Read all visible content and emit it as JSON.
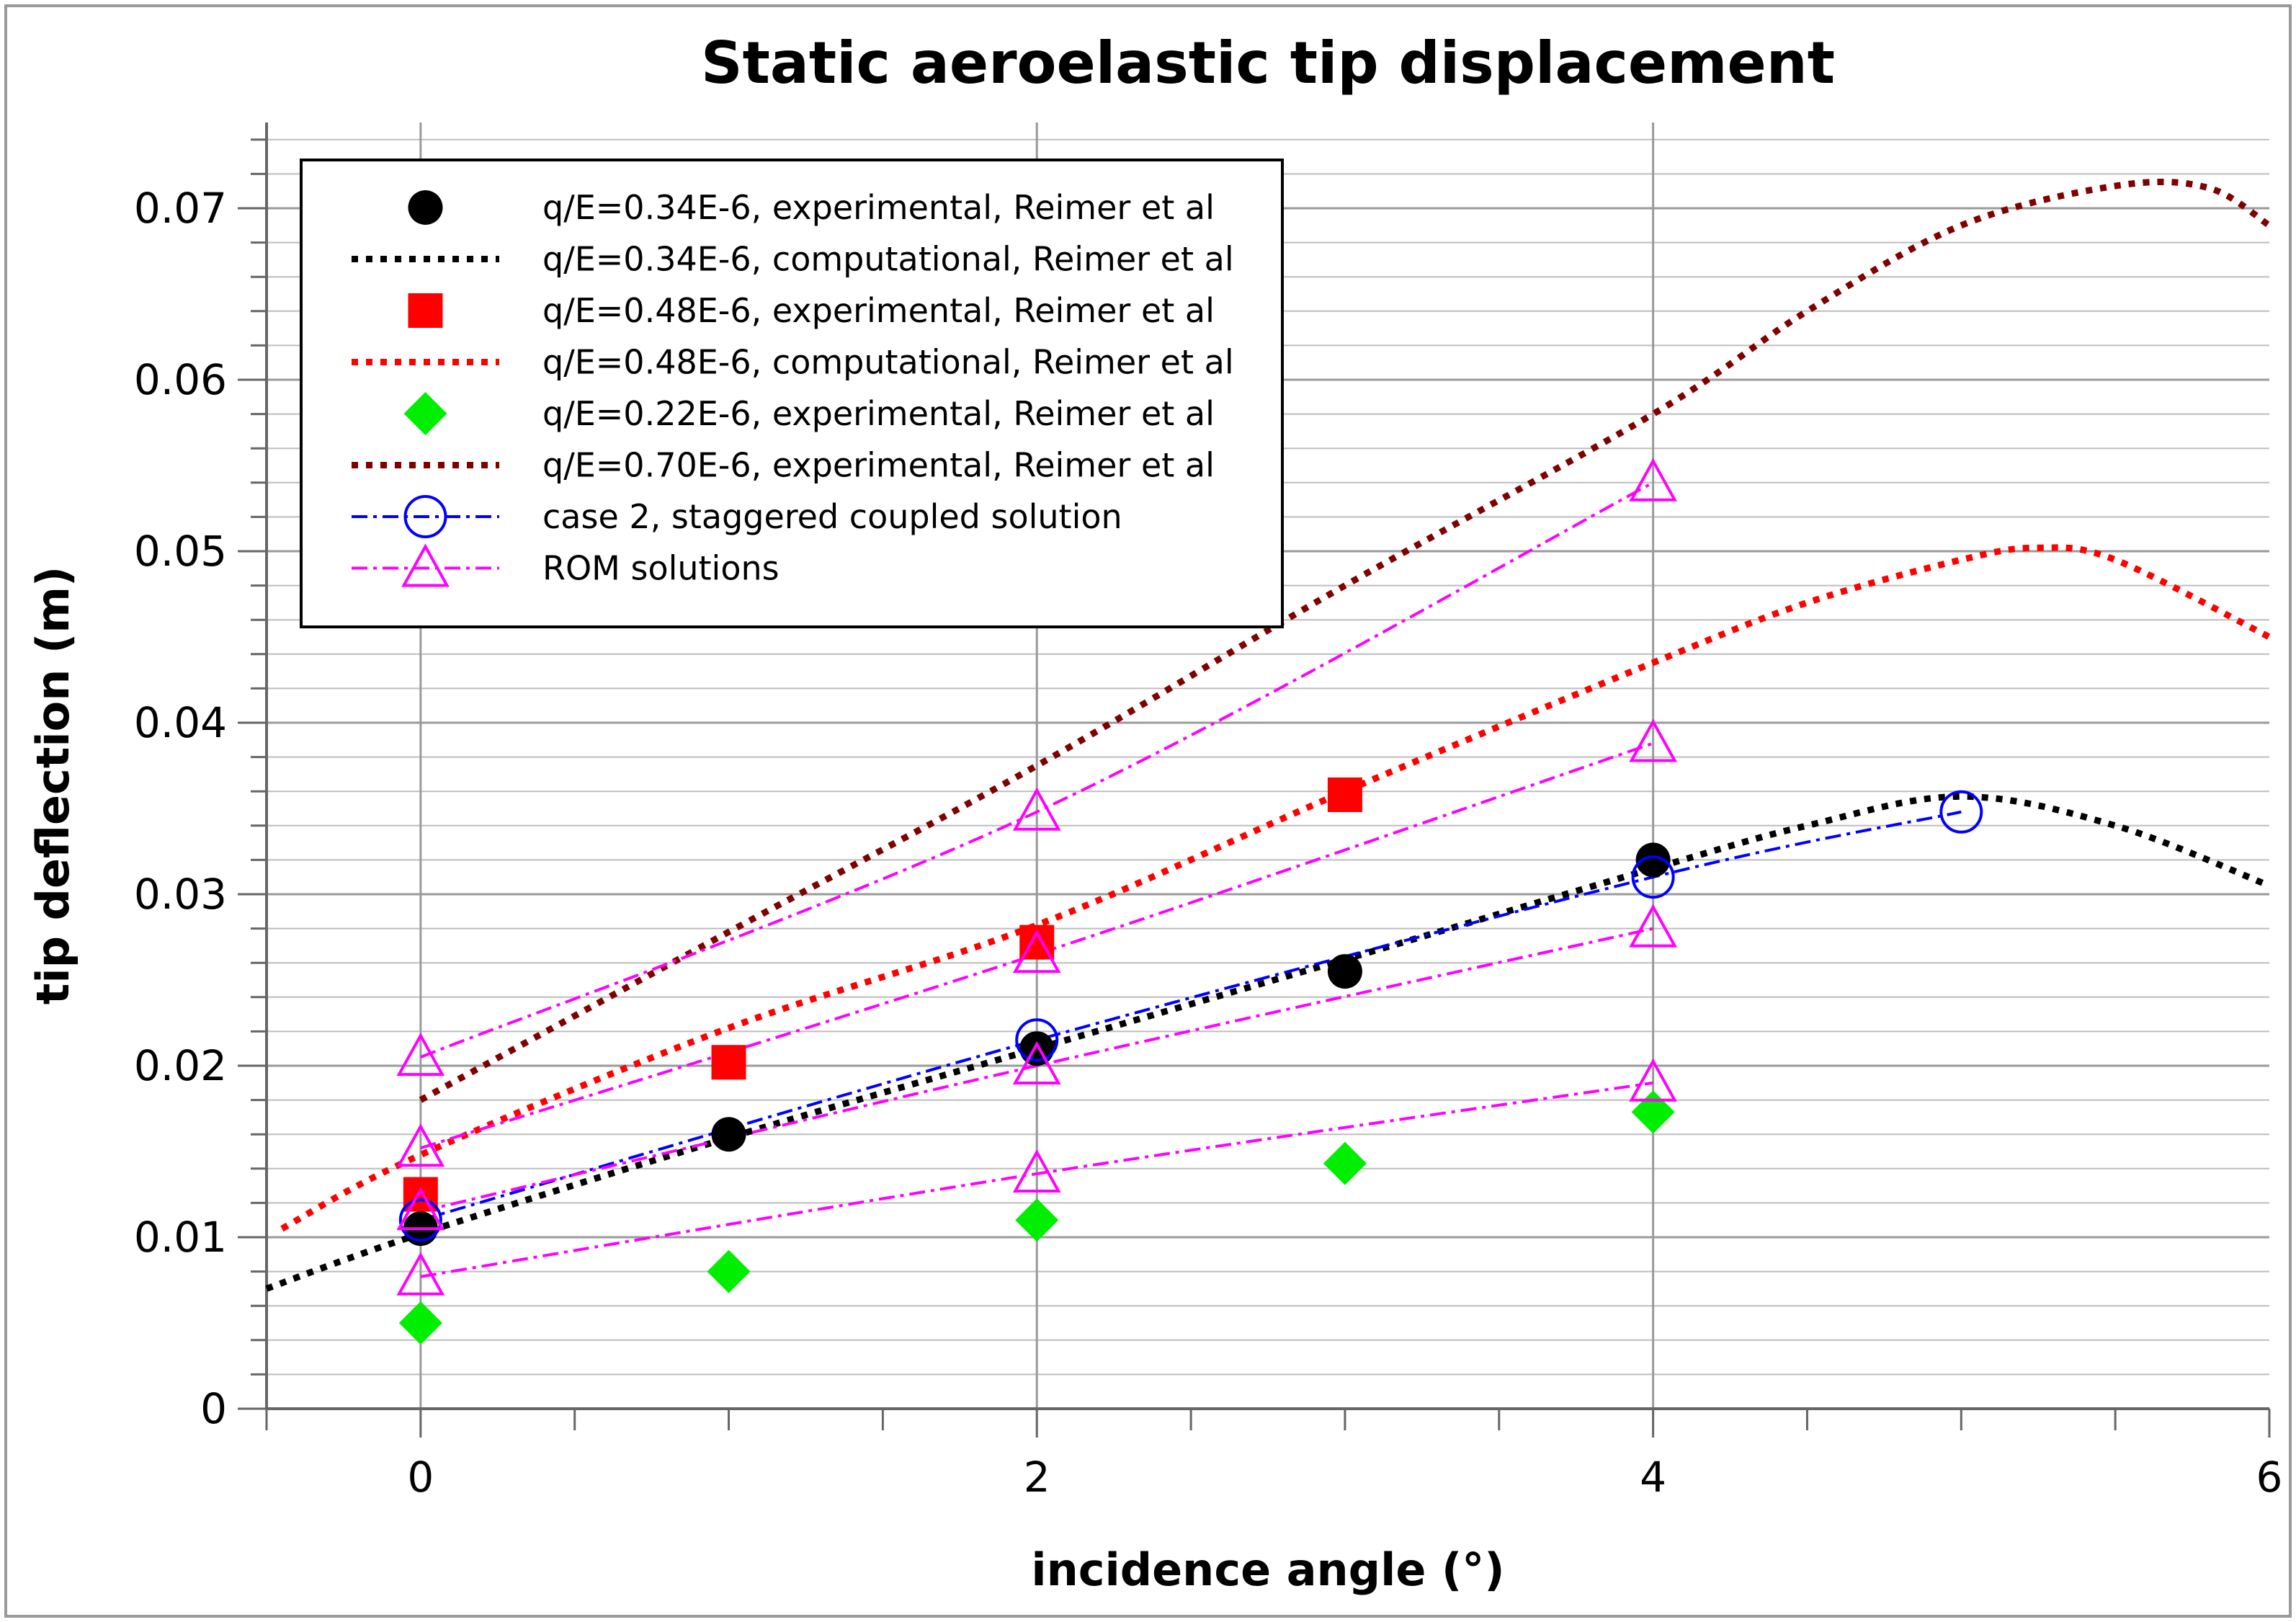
{
  "chart_data": {
    "type": "line",
    "title": "Static aeroelastic tip displacement",
    "xlabel": "incidence angle (°)",
    "ylabel": "tip deflection (m)",
    "xlim": [
      -0.5,
      6
    ],
    "ylim": [
      0,
      0.075
    ],
    "xticks": [
      0,
      2,
      4,
      6
    ],
    "xtick_labels": [
      "0",
      "2",
      "4",
      "6"
    ],
    "yticks": [
      0,
      0.01,
      0.02,
      0.03,
      0.04,
      0.05,
      0.06,
      0.07
    ],
    "ytick_labels": [
      "0",
      "0.01",
      "0.02",
      "0.03",
      "0.04",
      "0.05",
      "0.06",
      "0.07"
    ],
    "grid": true,
    "legend_position": "top-left",
    "series": [
      {
        "name": "q/E=0.34E-6, experimental, Reimer et al",
        "style": "marker",
        "marker": "circle-filled",
        "color": "#000000",
        "x": [
          0,
          1,
          2,
          3,
          4
        ],
        "y": [
          0.0105,
          0.016,
          0.021,
          0.0255,
          0.032
        ]
      },
      {
        "name": "q/E=0.34E-6, computational, Reimer et al",
        "style": "dotted",
        "color": "#000000",
        "x": [
          -0.5,
          0,
          1,
          2,
          3,
          4,
          4.5,
          5,
          5.5,
          6
        ],
        "y": [
          0.007,
          0.0102,
          0.0158,
          0.021,
          0.0262,
          0.0315,
          0.034,
          0.0357,
          0.034,
          0.0305
        ]
      },
      {
        "name": "q/E=0.48E-6, experimental, Reimer et al",
        "style": "marker",
        "marker": "square-filled",
        "color": "#ff0000",
        "x": [
          0,
          1,
          2,
          3
        ],
        "y": [
          0.0125,
          0.0202,
          0.0272,
          0.0358
        ]
      },
      {
        "name": "q/E=0.48E-6, computational, Reimer et al",
        "style": "dotted",
        "color": "#ff0000",
        "x": [
          -0.45,
          0,
          1,
          2,
          3,
          4,
          4.5,
          5,
          5.25,
          5.5,
          6
        ],
        "y": [
          0.0105,
          0.0148,
          0.0222,
          0.0282,
          0.036,
          0.0435,
          0.047,
          0.0495,
          0.0502,
          0.0495,
          0.045
        ]
      },
      {
        "name": "q/E=0.22E-6, experimental, Reimer et al",
        "style": "marker",
        "marker": "diamond-filled",
        "color": "#00ee00",
        "x": [
          0,
          1,
          2,
          3,
          4
        ],
        "y": [
          0.005,
          0.008,
          0.011,
          0.0143,
          0.0173
        ]
      },
      {
        "name": "q/E=0.70E-6, experimental, Reimer et al",
        "style": "dotted",
        "color": "#800000",
        "x": [
          0,
          1,
          2,
          3,
          4,
          4.5,
          5,
          5.5,
          5.8,
          6
        ],
        "y": [
          0.018,
          0.0278,
          0.0375,
          0.048,
          0.058,
          0.064,
          0.069,
          0.0713,
          0.0712,
          0.069
        ]
      },
      {
        "name": "case 2, staggered coupled solution",
        "style": "dashdot",
        "marker": "circle-open",
        "color": "#0000ff",
        "x": [
          0,
          2,
          4,
          5
        ],
        "y": [
          0.011,
          0.0215,
          0.031,
          0.0348
        ]
      },
      {
        "name": "ROM solutions",
        "style": "dashdot",
        "marker": "triangle-open",
        "color": "#ff00ff",
        "groups": [
          {
            "x": [
              0,
              2,
              4
            ],
            "y": [
              0.0205,
              0.0348,
              0.054
            ]
          },
          {
            "x": [
              0,
              2,
              4
            ],
            "y": [
              0.0152,
              0.0265,
              0.0388
            ]
          },
          {
            "x": [
              0,
              2,
              4
            ],
            "y": [
              0.0115,
              0.02,
              0.028
            ]
          },
          {
            "x": [
              0,
              2,
              4
            ],
            "y": [
              0.0077,
              0.0137,
              0.019
            ]
          }
        ]
      }
    ]
  }
}
